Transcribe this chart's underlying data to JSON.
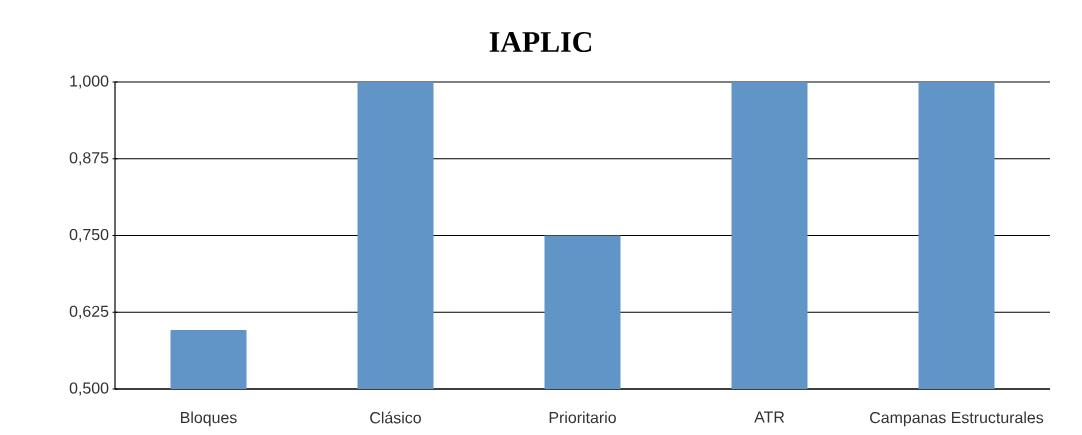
{
  "chart_data": {
    "type": "bar",
    "title": "IAPLIC",
    "categories": [
      "Bloques",
      "Clásico",
      "Prioritario",
      "ATR",
      "Campanas Estructurales"
    ],
    "values": [
      0.596,
      1.0,
      0.75,
      1.0,
      1.0
    ],
    "color": "#6195c8",
    "ylim": [
      0.5,
      1.0
    ],
    "yticks": [
      {
        "value": 0.5,
        "label": "0,500"
      },
      {
        "value": 0.625,
        "label": "0,625"
      },
      {
        "value": 0.75,
        "label": "0,750"
      },
      {
        "value": 0.875,
        "label": "0,875"
      },
      {
        "value": 1.0,
        "label": "1,000"
      }
    ],
    "grid": "y"
  }
}
